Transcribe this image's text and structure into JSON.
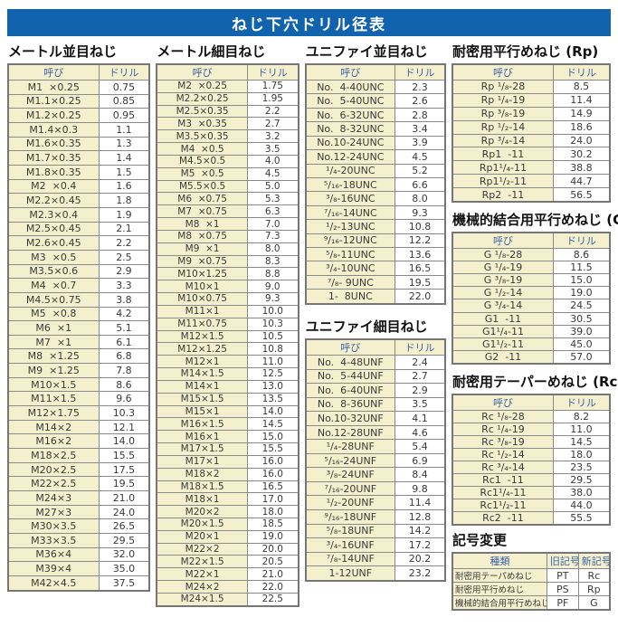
{
  "page_title": "ねじ下穴ドリル径表",
  "colors": {
    "banner_blue": "#1263ae",
    "header_text_blue": "#3c62a8",
    "name_cell_cream": "#f4f0cd",
    "value_cell_white": "#ffffff",
    "border_gray": "#8a8a8a",
    "body_text": "#3a3a3a"
  },
  "col_headers": {
    "name": "呼び",
    "drill": "ドリル"
  },
  "tables": {
    "metric_coarse": {
      "title": "メートル並目ねじ",
      "rows": [
        [
          "M1  ×0.25",
          "0.75"
        ],
        [
          "M1.1×0.25",
          "0.85"
        ],
        [
          "M1.2×0.25",
          "0.95"
        ],
        [
          "M1.4×0.3",
          "1.1"
        ],
        [
          "M1.6×0.35",
          "1.3"
        ],
        [
          "M1.7×0.35",
          "1.4"
        ],
        [
          "M1.8×0.35",
          "1.5"
        ],
        [
          "M2  ×0.4",
          "1.6"
        ],
        [
          "M2.2×0.45",
          "1.8"
        ],
        [
          "M2.3×0.4",
          "1.9"
        ],
        [
          "M2.5×0.45",
          "2.1"
        ],
        [
          "M2.6×0.45",
          "2.2"
        ],
        [
          "M3  ×0.5",
          "2.5"
        ],
        [
          "M3.5×0.6",
          "2.9"
        ],
        [
          "M4  ×0.7",
          "3.3"
        ],
        [
          "M4.5×0.75",
          "3.8"
        ],
        [
          "M5  ×0.8",
          "4.2"
        ],
        [
          "M6  ×1",
          "5.1"
        ],
        [
          "M7  ×1",
          "6.1"
        ],
        [
          "M8  ×1.25",
          "6.8"
        ],
        [
          "M9  ×1.25",
          "7.8"
        ],
        [
          "M10×1.5",
          "8.6"
        ],
        [
          "M11×1.5",
          "9.6"
        ],
        [
          "M12×1.75",
          "10.3"
        ],
        [
          "M14×2",
          "12.1"
        ],
        [
          "M16×2",
          "14.0"
        ],
        [
          "M18×2.5",
          "15.5"
        ],
        [
          "M20×2.5",
          "17.5"
        ],
        [
          "M22×2.5",
          "19.5"
        ],
        [
          "M24×3",
          "21.0"
        ],
        [
          "M27×3",
          "24.0"
        ],
        [
          "M30×3.5",
          "26.5"
        ],
        [
          "M33×3.5",
          "29.5"
        ],
        [
          "M36×4",
          "32.0"
        ],
        [
          "M39×4",
          "35.0"
        ],
        [
          "M42×4.5",
          "37.5"
        ]
      ]
    },
    "metric_fine": {
      "title": "メートル細目ねじ",
      "rows": [
        [
          "M2  ×0.25",
          "1.75"
        ],
        [
          "M2.2×0.25",
          "1.95"
        ],
        [
          "M2.5×0.35",
          "2.2"
        ],
        [
          "M3  ×0.35",
          "2.7"
        ],
        [
          "M3.5×0.35",
          "3.2"
        ],
        [
          "M4  ×0.5",
          "3.5"
        ],
        [
          "M4.5×0.5",
          "4.0"
        ],
        [
          "M5  ×0.5",
          "4.5"
        ],
        [
          "M5.5×0.5",
          "5.0"
        ],
        [
          "M6  ×0.75",
          "5.3"
        ],
        [
          "M7  ×0.75",
          "6.3"
        ],
        [
          "M8  ×1",
          "7.0"
        ],
        [
          "M8  ×0.75",
          "7.3"
        ],
        [
          "M9  ×1",
          "8.0"
        ],
        [
          "M9  ×0.75",
          "8.3"
        ],
        [
          "M10×1.25",
          "8.8"
        ],
        [
          "M10×1",
          "9.0"
        ],
        [
          "M10×0.75",
          "9.3"
        ],
        [
          "M11×1",
          "10.0"
        ],
        [
          "M11×0.75",
          "10.3"
        ],
        [
          "M12×1.5",
          "10.5"
        ],
        [
          "M12×1.25",
          "10.8"
        ],
        [
          "M12×1",
          "11.0"
        ],
        [
          "M14×1.5",
          "12.5"
        ],
        [
          "M14×1",
          "13.0"
        ],
        [
          "M15×1.5",
          "13.5"
        ],
        [
          "M15×1",
          "14.0"
        ],
        [
          "M16×1.5",
          "14.5"
        ],
        [
          "M16×1",
          "15.0"
        ],
        [
          "M17×1.5",
          "15.5"
        ],
        [
          "M17×1",
          "16.0"
        ],
        [
          "M18×2",
          "16.0"
        ],
        [
          "M18×1.5",
          "16.5"
        ],
        [
          "M18×1",
          "17.0"
        ],
        [
          "M20×2",
          "18.0"
        ],
        [
          "M20×1.5",
          "18.5"
        ],
        [
          "M20×1",
          "19.0"
        ],
        [
          "M22×2",
          "20.0"
        ],
        [
          "M22×1.5",
          "20.5"
        ],
        [
          "M22×1",
          "21.0"
        ],
        [
          "M24×2",
          "22.0"
        ],
        [
          "M24×1.5",
          "22.5"
        ]
      ]
    },
    "unified_coarse": {
      "title": "ユニファイ並目ねじ",
      "rows": [
        [
          "No.  4-40UNC",
          "2.3"
        ],
        [
          "No.  5-40UNC",
          "2.6"
        ],
        [
          "No.  6-32UNC",
          "2.8"
        ],
        [
          "No.  8-32UNC",
          "3.4"
        ],
        [
          "No.10-24UNC",
          "3.9"
        ],
        [
          "No.12-24UNC",
          "4.5"
        ],
        [
          "¹/₄-20UNC",
          "5.2"
        ],
        [
          "⁵/₁₆-18UNC",
          "6.6"
        ],
        [
          "³/₈-16UNC",
          "8.0"
        ],
        [
          "⁷/₁₆-14UNC",
          "9.3"
        ],
        [
          "¹/₂-13UNC",
          "10.8"
        ],
        [
          "⁹/₁₆-12UNC",
          "12.2"
        ],
        [
          "⁵/₈-11UNC",
          "13.6"
        ],
        [
          "³/₄-10UNC",
          "16.5"
        ],
        [
          "⁷/₈- 9UNC",
          "19.5"
        ],
        [
          "1-  8UNC",
          "22.0"
        ]
      ]
    },
    "unified_fine": {
      "title": "ユニファイ細目ねじ",
      "rows": [
        [
          "No.  4-48UNF",
          "2.4"
        ],
        [
          "No.  5-44UNF",
          "2.7"
        ],
        [
          "No.  6-40UNF",
          "2.9"
        ],
        [
          "No.  8-36UNF",
          "3.5"
        ],
        [
          "No.10-32UNF",
          "4.1"
        ],
        [
          "No.12-28UNF",
          "4.6"
        ],
        [
          "¹/₄-28UNF",
          "5.4"
        ],
        [
          "⁵/₁₆-24UNF",
          "6.9"
        ],
        [
          "³/₈-24UNF",
          "8.4"
        ],
        [
          "⁷/₁₆-20UNF",
          "9.8"
        ],
        [
          "¹/₂-20UNF",
          "11.4"
        ],
        [
          "⁹/₁₆-18UNF",
          "12.8"
        ],
        [
          "⁵/₈-18UNF",
          "14.2"
        ],
        [
          "³/₄-16UNF",
          "17.2"
        ],
        [
          "⁷/₈-14UNF",
          "20.2"
        ],
        [
          "1-12UNF",
          "23.2"
        ]
      ]
    },
    "rp": {
      "title": "耐密用平行めねじ (Rp)",
      "rows": [
        [
          "Rp ¹/₈-28",
          "8.5"
        ],
        [
          "Rp ¹/₄-19",
          "11.4"
        ],
        [
          "Rp ³/₈-19",
          "14.9"
        ],
        [
          "Rp ¹/₂-14",
          "18.6"
        ],
        [
          "Rp ³/₄-14",
          "24.0"
        ],
        [
          "Rp1  -11",
          "30.2"
        ],
        [
          "Rp1¹/₄-11",
          "38.8"
        ],
        [
          "Rp1¹/₂-11",
          "44.7"
        ],
        [
          "Rp2  -11",
          "56.5"
        ]
      ]
    },
    "g": {
      "title": "機械的結合用平行めねじ (G)",
      "rows": [
        [
          "G ¹/₈-28",
          "8.6"
        ],
        [
          "G ¹/₄-19",
          "11.5"
        ],
        [
          "G ³/₈-19",
          "15.0"
        ],
        [
          "G ¹/₂-14",
          "19.0"
        ],
        [
          "G ³/₄-14",
          "24.5"
        ],
        [
          "G1  -11",
          "30.5"
        ],
        [
          "G1¹/₄-11",
          "39.0"
        ],
        [
          "G1¹/₂-11",
          "45.0"
        ],
        [
          "G2  -11",
          "57.0"
        ]
      ]
    },
    "rc": {
      "title": "耐密用テーパーめねじ (Rc)",
      "rows": [
        [
          "Rc ¹/₈-28",
          "8.2"
        ],
        [
          "Rc ¹/₄-19",
          "11.0"
        ],
        [
          "Rc ³/₈-19",
          "14.5"
        ],
        [
          "Rc ¹/₂-14",
          "18.0"
        ],
        [
          "Rc ³/₄-14",
          "23.5"
        ],
        [
          "Rc1  -11",
          "29.5"
        ],
        [
          "Rc1¹/₄-11",
          "38.0"
        ],
        [
          "Rc1¹/₂-11",
          "44.0"
        ],
        [
          "Rc2  -11",
          "55.5"
        ]
      ]
    }
  },
  "symbol_change": {
    "title": "記号変更",
    "headers": {
      "kind": "種類",
      "old": "旧記号",
      "new": "新記号"
    },
    "rows": [
      [
        "耐密用テーパめねじ",
        "PT",
        "Rc"
      ],
      [
        "耐密用平行めねじ",
        "PS",
        "Rp"
      ],
      [
        "機械的結合用平行めねじ",
        "PF",
        "G"
      ]
    ]
  }
}
